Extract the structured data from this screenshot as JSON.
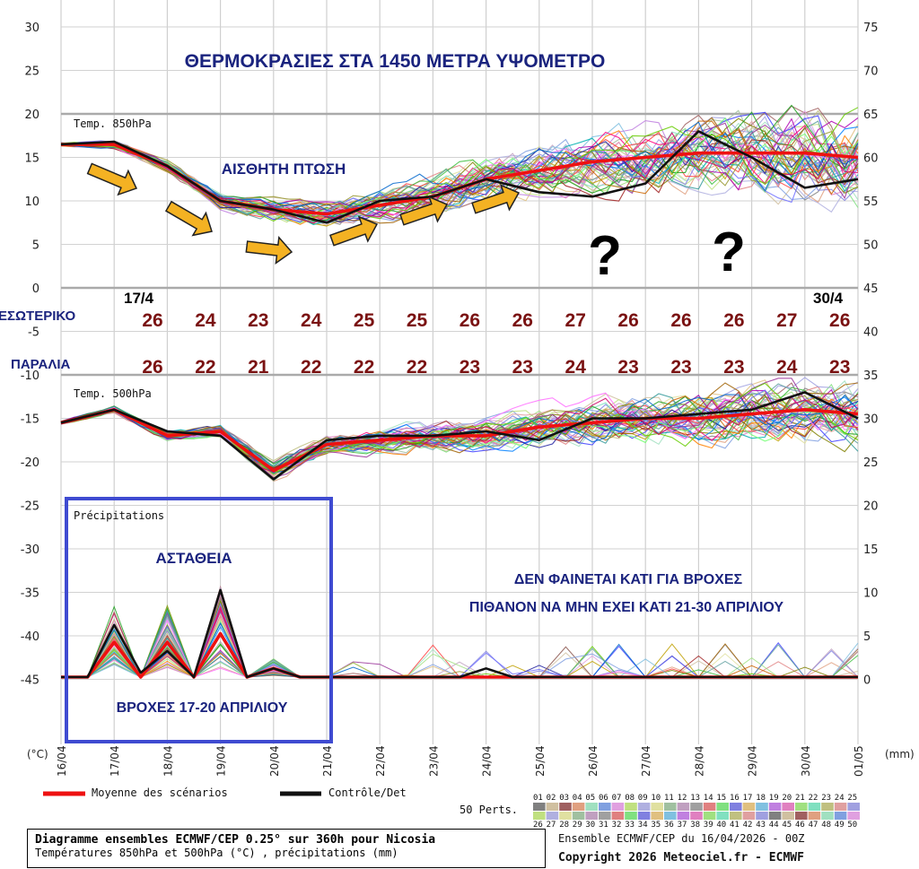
{
  "chart_data": {
    "type": "line",
    "title": "ΘΕΡΜΟΚΡΑΣΙΕΣ ΣΤΑ 1450 ΜΕΤΡΑ ΥΨΟΜΕΤΡΟ",
    "left_axis": {
      "unit": "(°C)",
      "ticks": [
        30,
        25,
        20,
        15,
        10,
        5,
        0,
        -5,
        -10,
        -15,
        -20,
        -25,
        -30,
        -35,
        -40,
        -45
      ]
    },
    "right_axis": {
      "unit": "(mm)",
      "ticks": [
        75,
        70,
        65,
        60,
        55,
        50,
        45,
        40,
        35,
        30,
        25,
        20,
        15,
        10,
        5,
        0
      ]
    },
    "x_ticks": [
      "16/04",
      "17/04",
      "18/04",
      "19/04",
      "20/04",
      "21/04",
      "22/04",
      "23/04",
      "24/04",
      "25/04",
      "26/04",
      "27/04",
      "28/04",
      "29/04",
      "30/04",
      "01/05"
    ],
    "grid": true,
    "panels": [
      {
        "label": "Temp. 850hPa",
        "series": [
          {
            "name": "Moyenne des scénarios",
            "color": "#ee1111",
            "values": [
              16.5,
              16.5,
              14,
              10,
              9,
              8.5,
              9.5,
              10.5,
              12.5,
              13.5,
              14.5,
              15,
              15.5,
              15.5,
              15.5,
              15
            ]
          },
          {
            "name": "Contrôle/Det",
            "color": "#111111",
            "values": [
              16.5,
              16.8,
              14,
              10,
              9,
              7.5,
              10,
              10.5,
              12.5,
              11,
              10.5,
              12,
              18,
              15,
              11.5,
              12.5
            ]
          }
        ]
      },
      {
        "label": "Temp. 500hPa",
        "series": [
          {
            "name": "Moyenne des scénarios",
            "color": "#ee1111",
            "values": [
              -15.5,
              -14,
              -17,
              -16.5,
              -21,
              -18,
              -17.5,
              -17,
              -17,
              -16,
              -15.5,
              -15,
              -15,
              -14.5,
              -14,
              -14.5
            ]
          },
          {
            "name": "Contrôle/Det",
            "color": "#111111",
            "values": [
              -15.5,
              -14,
              -16.5,
              -17,
              -22,
              -17.5,
              -17,
              -17,
              -16.5,
              -17.5,
              -15,
              -15,
              -14.5,
              -14,
              -12,
              -15
            ]
          }
        ]
      },
      {
        "label": "Précipitations",
        "unit": "mm",
        "series": [
          {
            "name": "Moyenne des scénarios",
            "color": "#ee1111",
            "values": [
              0,
              0,
              4,
              0,
              4,
              0,
              5,
              0,
              1,
              0,
              0,
              0,
              0,
              0,
              0,
              0,
              0,
              0,
              0,
              0,
              0,
              0,
              0,
              0,
              0,
              0,
              0,
              0,
              0,
              0,
              0
            ]
          },
          {
            "name": "Contrôle/Det",
            "color": "#111111",
            "values": [
              0,
              0,
              6,
              0.5,
              3,
              0,
              10,
              0,
              1,
              0,
              0,
              0,
              0,
              0,
              0,
              0,
              1,
              0,
              0,
              0,
              0,
              0,
              0,
              0,
              0,
              0,
              0,
              0,
              0,
              0,
              0
            ]
          }
        ]
      }
    ],
    "annotations": {
      "fall": "ΑΙΣΘΗΤΗ ΠΤΩΣΗ",
      "question": "?",
      "date_start": "17/4",
      "date_end": "30/4",
      "row1_label": "ΕΣΩΤΕΡΙΚΟ",
      "row1_values": [
        "26",
        "24",
        "23",
        "24",
        "25",
        "25",
        "26",
        "26",
        "27",
        "26",
        "26",
        "26",
        "27",
        "26"
      ],
      "row2_label": "ΠΑΡΑΛΙΑ",
      "row2_values": [
        "26",
        "22",
        "21",
        "22",
        "22",
        "22",
        "23",
        "23",
        "24",
        "23",
        "23",
        "23",
        "24",
        "23"
      ],
      "instability": "ΑΣΤΑΘΕΙΑ",
      "rain_box_label": "ΒΡΟΧΕΣ 17-20 ΑΠΡΙΛΙΟΥ",
      "no_rain_line1": "ΔΕΝ ΦΑΙΝΕΤΑΙ ΚΑΤΙ ΓΙΑ ΒΡΟΧΕΣ",
      "no_rain_line2": "ΠΙΘΑΝΟΝ ΝΑ ΜΗΝ ΕΧΕΙ ΚΑΤΙ 21-30 ΑΠΡΙΛΙΟΥ"
    }
  },
  "legend": {
    "mean_label": "Moyenne des scénarios",
    "control_label": "Contrôle/Det",
    "perts_label": "50 Perts.",
    "perts_top": [
      "01",
      "02",
      "03",
      "04",
      "05",
      "06",
      "07",
      "08",
      "09",
      "10",
      "11",
      "12",
      "13",
      "14",
      "15",
      "16",
      "17",
      "18",
      "19",
      "20",
      "21",
      "22",
      "23",
      "24",
      "25"
    ],
    "perts_bottom": [
      "26",
      "27",
      "28",
      "29",
      "30",
      "31",
      "32",
      "33",
      "34",
      "35",
      "36",
      "37",
      "38",
      "39",
      "40",
      "41",
      "42",
      "43",
      "44",
      "45",
      "46",
      "47",
      "48",
      "49",
      "50"
    ],
    "perts_colors": [
      "#808080",
      "#d0c0a0",
      "#a06060",
      "#e0a080",
      "#a0e0c0",
      "#80a0e0",
      "#e0a0e0",
      "#c0e080",
      "#b0b0e0",
      "#e0e0a0",
      "#a0c0a0",
      "#c0a0c0",
      "#a0a0a0",
      "#e08080",
      "#80e080",
      "#8080e0",
      "#e0c080",
      "#80c0e0",
      "#c080e0",
      "#e080c0",
      "#a0e080",
      "#80e0c0",
      "#c0c080",
      "#e0a0a0",
      "#a0a0e0"
    ]
  },
  "info": {
    "line1": "Diagramme ensembles ECMWF/CEP 0.25° sur 360h pour Nicosia",
    "line2": "Températures 850hPa et 500hPa (°C) , précipitations (mm)",
    "run": "Ensemble ECMWF/CEP du 16/04/2026 - 00Z",
    "copyright": "Copyright 2026 Meteociel.fr - ECMWF"
  }
}
